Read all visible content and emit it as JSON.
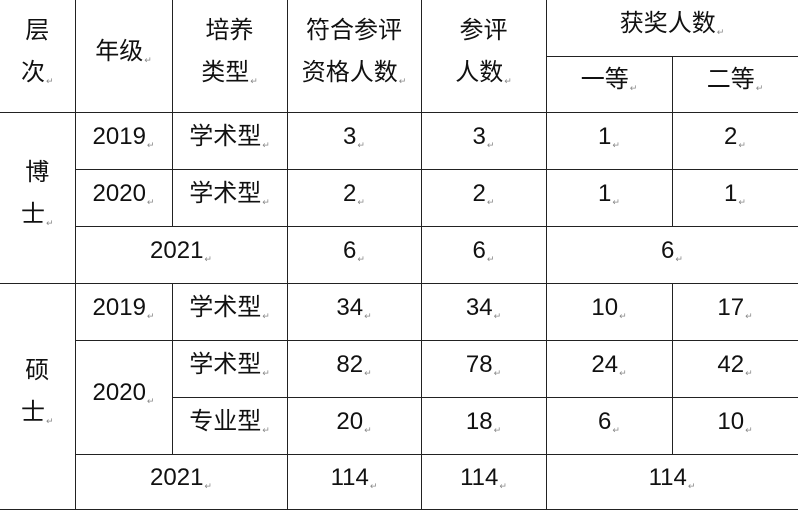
{
  "header": {
    "level": "层\n次",
    "grade": "年级",
    "type": "培养\n类型",
    "eligible": "符合参评\n资格人数",
    "participants": "参评\n人数",
    "awards": "获奖人数",
    "first": "一等",
    "second": "二等"
  },
  "phd": {
    "label": "博\n士",
    "rows": [
      {
        "grade": "2019",
        "type": "学术型",
        "eligible": "3",
        "participants": "3",
        "first": "1",
        "second": "2"
      },
      {
        "grade": "2020",
        "type": "学术型",
        "eligible": "2",
        "participants": "2",
        "first": "1",
        "second": "1"
      }
    ],
    "y2021": {
      "grade": "2021",
      "eligible": "6",
      "participants": "6",
      "awards": "6"
    }
  },
  "master": {
    "label": "硕\n士",
    "rows": [
      {
        "grade": "2019",
        "type": "学术型",
        "eligible": "34",
        "participants": "34",
        "first": "10",
        "second": "17"
      },
      {
        "grade": "2020",
        "type": "学术型",
        "eligible": "82",
        "participants": "78",
        "first": "24",
        "second": "42"
      },
      {
        "type": "专业型",
        "eligible": "20",
        "participants": "18",
        "first": "6",
        "second": "10"
      }
    ],
    "y2021": {
      "grade": "2021",
      "eligible": "114",
      "participants": "114",
      "awards": "114"
    }
  }
}
